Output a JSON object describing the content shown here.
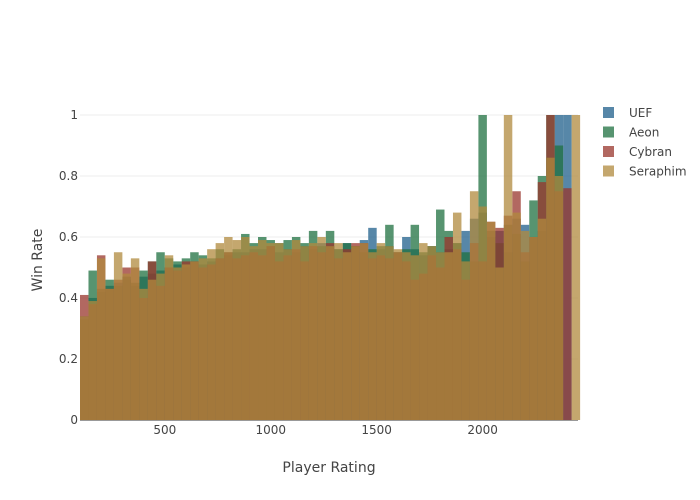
{
  "chart_data": {
    "type": "bar",
    "barmode": "overlay",
    "title": "",
    "xlabel": "Player Rating",
    "ylabel": "Win Rate",
    "xlim": [
      100,
      2450
    ],
    "ylim": [
      0,
      1
    ],
    "grid": true,
    "legend_position": "top-right",
    "xticks": [
      500,
      1000,
      1500,
      2000
    ],
    "xtick_labels": [
      "500",
      "1000",
      "1500",
      "2000"
    ],
    "yticks": [
      0,
      0.2,
      0.4,
      0.6,
      0.8,
      1
    ],
    "ytick_labels": [
      "0",
      "0.2",
      "0.4",
      "0.6",
      "0.8",
      "1"
    ],
    "bin_width": 40,
    "x": [
      120,
      160,
      200,
      240,
      280,
      320,
      360,
      400,
      440,
      480,
      520,
      560,
      600,
      640,
      680,
      720,
      760,
      800,
      840,
      880,
      920,
      960,
      1000,
      1040,
      1080,
      1120,
      1160,
      1200,
      1240,
      1280,
      1320,
      1360,
      1400,
      1440,
      1480,
      1520,
      1560,
      1600,
      1640,
      1680,
      1720,
      1760,
      1800,
      1840,
      1880,
      1920,
      1960,
      2000,
      2040,
      2080,
      2120,
      2160,
      2200,
      2240,
      2280,
      2320,
      2360,
      2400,
      2440
    ],
    "series": [
      {
        "name": "UEF",
        "color": "#1f5f8b",
        "values": [
          0.34,
          0.4,
          0.42,
          0.44,
          0.45,
          0.46,
          0.44,
          0.47,
          0.48,
          0.49,
          0.5,
          0.51,
          0.5,
          0.52,
          0.51,
          0.52,
          0.53,
          0.54,
          0.55,
          0.55,
          0.56,
          0.56,
          0.57,
          0.55,
          0.56,
          0.55,
          0.57,
          0.56,
          0.58,
          0.57,
          0.56,
          0.58,
          0.57,
          0.59,
          0.63,
          0.56,
          0.57,
          0.55,
          0.6,
          0.56,
          0.54,
          0.57,
          0.55,
          0.56,
          0.58,
          0.62,
          0.66,
          0.68,
          0.6,
          0.62,
          0.55,
          0.66,
          0.64,
          0.6,
          0.62,
          0.86,
          1.0,
          1.0,
          null
        ]
      },
      {
        "name": "Aeon",
        "color": "#1f7040",
        "values": [
          0.33,
          0.49,
          0.43,
          0.46,
          0.44,
          0.47,
          0.45,
          0.49,
          0.52,
          0.55,
          0.53,
          0.52,
          0.53,
          0.55,
          0.54,
          0.53,
          0.56,
          0.55,
          0.56,
          0.61,
          0.58,
          0.6,
          0.59,
          0.58,
          0.59,
          0.6,
          0.58,
          0.62,
          0.57,
          0.62,
          0.56,
          0.58,
          0.57,
          0.55,
          0.56,
          0.57,
          0.64,
          0.55,
          0.56,
          0.64,
          0.55,
          0.57,
          0.69,
          0.62,
          0.58,
          0.55,
          0.52,
          1.0,
          0.62,
          0.58,
          0.64,
          0.61,
          0.52,
          0.72,
          0.8,
          1.0,
          0.9,
          null,
          null
        ]
      },
      {
        "name": "Cybran",
        "color": "#98352c",
        "values": [
          0.41,
          0.38,
          0.54,
          0.43,
          0.46,
          0.5,
          0.5,
          0.4,
          0.52,
          0.44,
          0.5,
          0.49,
          0.52,
          0.52,
          0.5,
          0.51,
          0.53,
          0.55,
          0.53,
          0.54,
          0.55,
          0.54,
          0.57,
          0.52,
          0.54,
          0.56,
          0.52,
          0.57,
          0.55,
          0.58,
          0.53,
          0.56,
          0.58,
          0.58,
          0.53,
          0.54,
          0.53,
          0.55,
          0.52,
          0.46,
          0.48,
          0.54,
          0.5,
          0.6,
          0.56,
          0.46,
          0.58,
          0.52,
          0.65,
          0.63,
          0.67,
          0.75,
          0.55,
          0.6,
          0.78,
          1.0,
          0.75,
          0.76,
          null
        ]
      },
      {
        "name": "Seraphim",
        "color": "#b08a3e",
        "values": [
          0.34,
          0.39,
          0.53,
          0.43,
          0.55,
          0.48,
          0.53,
          0.43,
          0.46,
          0.48,
          0.54,
          0.5,
          0.51,
          0.52,
          0.53,
          0.56,
          0.58,
          0.6,
          0.59,
          0.6,
          0.57,
          0.59,
          0.58,
          0.58,
          0.56,
          0.59,
          0.57,
          0.58,
          0.6,
          0.57,
          0.58,
          0.55,
          0.57,
          0.58,
          0.55,
          0.58,
          0.57,
          0.56,
          0.55,
          0.54,
          0.58,
          0.57,
          0.55,
          0.55,
          0.68,
          0.52,
          0.75,
          0.7,
          0.65,
          0.5,
          1.0,
          0.68,
          0.62,
          0.6,
          0.66,
          0.86,
          0.8,
          null,
          1.0
        ]
      }
    ]
  }
}
